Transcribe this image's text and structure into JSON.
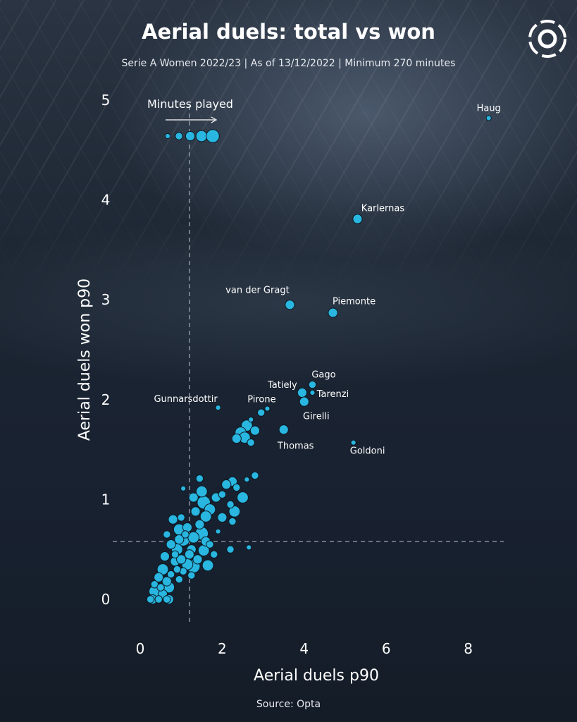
{
  "header": {
    "title": "Aerial duels: total vs won",
    "subtitle": "Serie A Women 2022/23 | As of 13/12/2022 | Minimum 270 minutes"
  },
  "footer": {
    "source": "Source: Opta"
  },
  "logo": {
    "icon": "opta-ball-icon"
  },
  "colors": {
    "point": "#29b6e0",
    "point_stroke": "#0b1a24",
    "guide": "#9aa4b0"
  },
  "chart_data": {
    "type": "scatter",
    "title": "Aerial duels: total vs won",
    "subtitle": "Serie A Women 2022/23 | As of 13/12/2022 | Minimum 270 minutes",
    "xlabel": "Aerial duels p90",
    "ylabel": "Aerial duels won p90",
    "xlim": [
      -0.3,
      8.9
    ],
    "ylim": [
      -0.25,
      5.25
    ],
    "xticks": [
      0,
      2,
      4,
      6,
      8
    ],
    "yticks": [
      0,
      1,
      2,
      3,
      4,
      5
    ],
    "grid": false,
    "reference_lines": {
      "x_mean": 1.2,
      "y_mean": 0.58
    },
    "size_legend": {
      "label": "Minutes played",
      "sizes": [
        1,
        2,
        3,
        4,
        5
      ]
    },
    "size_encoding": "Minutes played",
    "points": [
      {
        "x": 8.5,
        "y": 4.82,
        "s": 1,
        "label": "Haug"
      },
      {
        "x": 5.3,
        "y": 3.81,
        "s": 3,
        "label": "Karlernas"
      },
      {
        "x": 3.65,
        "y": 2.95,
        "s": 3,
        "label": "van der Gragt"
      },
      {
        "x": 4.7,
        "y": 2.87,
        "s": 3,
        "label": "Piemonte"
      },
      {
        "x": 4.2,
        "y": 2.15,
        "s": 2,
        "label": "Gago"
      },
      {
        "x": 3.95,
        "y": 2.07,
        "s": 3,
        "label": "Tatiely"
      },
      {
        "x": 4.2,
        "y": 2.07,
        "s": 1,
        "label": "Tarenzi"
      },
      {
        "x": 4.0,
        "y": 1.98,
        "s": 3,
        "label": "Girelli"
      },
      {
        "x": 1.9,
        "y": 1.92,
        "s": 1,
        "label": "Gunnarsdottir"
      },
      {
        "x": 3.1,
        "y": 1.91,
        "s": 1,
        "label": "Pirone"
      },
      {
        "x": 2.95,
        "y": 1.87,
        "s": 2
      },
      {
        "x": 3.5,
        "y": 1.7,
        "s": 3,
        "label": "Thomas"
      },
      {
        "x": 5.2,
        "y": 1.57,
        "s": 1,
        "label": "Goldoni"
      },
      {
        "x": 2.6,
        "y": 1.74,
        "s": 4
      },
      {
        "x": 2.8,
        "y": 1.69,
        "s": 3
      },
      {
        "x": 2.45,
        "y": 1.67,
        "s": 4
      },
      {
        "x": 2.35,
        "y": 1.61,
        "s": 3
      },
      {
        "x": 2.55,
        "y": 1.62,
        "s": 4
      },
      {
        "x": 2.7,
        "y": 1.57,
        "s": 2
      },
      {
        "x": 2.7,
        "y": 1.8,
        "s": 1
      },
      {
        "x": 2.8,
        "y": 1.24,
        "s": 2
      },
      {
        "x": 2.6,
        "y": 1.2,
        "s": 1
      },
      {
        "x": 2.25,
        "y": 1.18,
        "s": 3
      },
      {
        "x": 2.1,
        "y": 1.15,
        "s": 3
      },
      {
        "x": 2.35,
        "y": 1.12,
        "s": 2
      },
      {
        "x": 2.5,
        "y": 1.02,
        "s": 4
      },
      {
        "x": 2.0,
        "y": 1.05,
        "s": 2
      },
      {
        "x": 1.45,
        "y": 1.21,
        "s": 2
      },
      {
        "x": 1.05,
        "y": 1.11,
        "s": 1
      },
      {
        "x": 1.5,
        "y": 1.08,
        "s": 4
      },
      {
        "x": 1.55,
        "y": 0.97,
        "s": 5
      },
      {
        "x": 1.3,
        "y": 1.02,
        "s": 3
      },
      {
        "x": 1.7,
        "y": 0.9,
        "s": 4
      },
      {
        "x": 1.85,
        "y": 1.02,
        "s": 3
      },
      {
        "x": 2.2,
        "y": 0.95,
        "s": 2
      },
      {
        "x": 2.3,
        "y": 0.88,
        "s": 4
      },
      {
        "x": 2.25,
        "y": 0.78,
        "s": 2
      },
      {
        "x": 2.0,
        "y": 0.82,
        "s": 3
      },
      {
        "x": 1.6,
        "y": 0.83,
        "s": 4
      },
      {
        "x": 1.9,
        "y": 0.68,
        "s": 1
      },
      {
        "x": 0.8,
        "y": 0.8,
        "s": 3
      },
      {
        "x": 1.0,
        "y": 0.82,
        "s": 2
      },
      {
        "x": 0.95,
        "y": 0.7,
        "s": 4
      },
      {
        "x": 1.15,
        "y": 0.72,
        "s": 3
      },
      {
        "x": 1.45,
        "y": 0.75,
        "s": 3
      },
      {
        "x": 1.3,
        "y": 0.62,
        "s": 4
      },
      {
        "x": 1.5,
        "y": 0.66,
        "s": 5
      },
      {
        "x": 1.05,
        "y": 0.6,
        "s": 5
      },
      {
        "x": 0.65,
        "y": 0.65,
        "s": 2
      },
      {
        "x": 0.75,
        "y": 0.55,
        "s": 3
      },
      {
        "x": 0.9,
        "y": 0.5,
        "s": 4
      },
      {
        "x": 1.25,
        "y": 0.5,
        "s": 3
      },
      {
        "x": 1.55,
        "y": 0.49,
        "s": 4
      },
      {
        "x": 1.7,
        "y": 0.55,
        "s": 2
      },
      {
        "x": 2.2,
        "y": 0.5,
        "s": 2
      },
      {
        "x": 2.65,
        "y": 0.52,
        "s": 1
      },
      {
        "x": 0.6,
        "y": 0.43,
        "s": 3
      },
      {
        "x": 0.85,
        "y": 0.38,
        "s": 3
      },
      {
        "x": 1.15,
        "y": 0.35,
        "s": 4
      },
      {
        "x": 1.4,
        "y": 0.4,
        "s": 3
      },
      {
        "x": 1.8,
        "y": 0.45,
        "s": 2
      },
      {
        "x": 0.55,
        "y": 0.3,
        "s": 4
      },
      {
        "x": 0.75,
        "y": 0.25,
        "s": 2
      },
      {
        "x": 1.3,
        "y": 0.33,
        "s": 5
      },
      {
        "x": 1.65,
        "y": 0.34,
        "s": 4
      },
      {
        "x": 0.45,
        "y": 0.22,
        "s": 3
      },
      {
        "x": 0.65,
        "y": 0.18,
        "s": 3
      },
      {
        "x": 0.95,
        "y": 0.2,
        "s": 2
      },
      {
        "x": 1.05,
        "y": 0.28,
        "s": 2
      },
      {
        "x": 1.25,
        "y": 0.24,
        "s": 2
      },
      {
        "x": 0.35,
        "y": 0.15,
        "s": 2
      },
      {
        "x": 0.5,
        "y": 0.12,
        "s": 2
      },
      {
        "x": 0.7,
        "y": 0.12,
        "s": 4
      },
      {
        "x": 0.35,
        "y": 0.08,
        "s": 4
      },
      {
        "x": 0.55,
        "y": 0.05,
        "s": 3
      },
      {
        "x": 0.3,
        "y": 0.0,
        "s": 3
      },
      {
        "x": 0.25,
        "y": 0.0,
        "s": 2
      },
      {
        "x": 0.45,
        "y": 0.0,
        "s": 2
      },
      {
        "x": 0.65,
        "y": 0.0,
        "s": 2
      },
      {
        "x": 0.7,
        "y": 0.0,
        "s": 3
      },
      {
        "x": 0.85,
        "y": 0.45,
        "s": 2
      },
      {
        "x": 1.1,
        "y": 0.65,
        "s": 2
      },
      {
        "x": 0.95,
        "y": 0.6,
        "s": 3
      },
      {
        "x": 1.35,
        "y": 0.88,
        "s": 3
      },
      {
        "x": 1.6,
        "y": 0.58,
        "s": 3
      },
      {
        "x": 1.2,
        "y": 0.45,
        "s": 3
      },
      {
        "x": 1.0,
        "y": 0.4,
        "s": 3
      },
      {
        "x": 0.9,
        "y": 0.3,
        "s": 2
      }
    ]
  }
}
